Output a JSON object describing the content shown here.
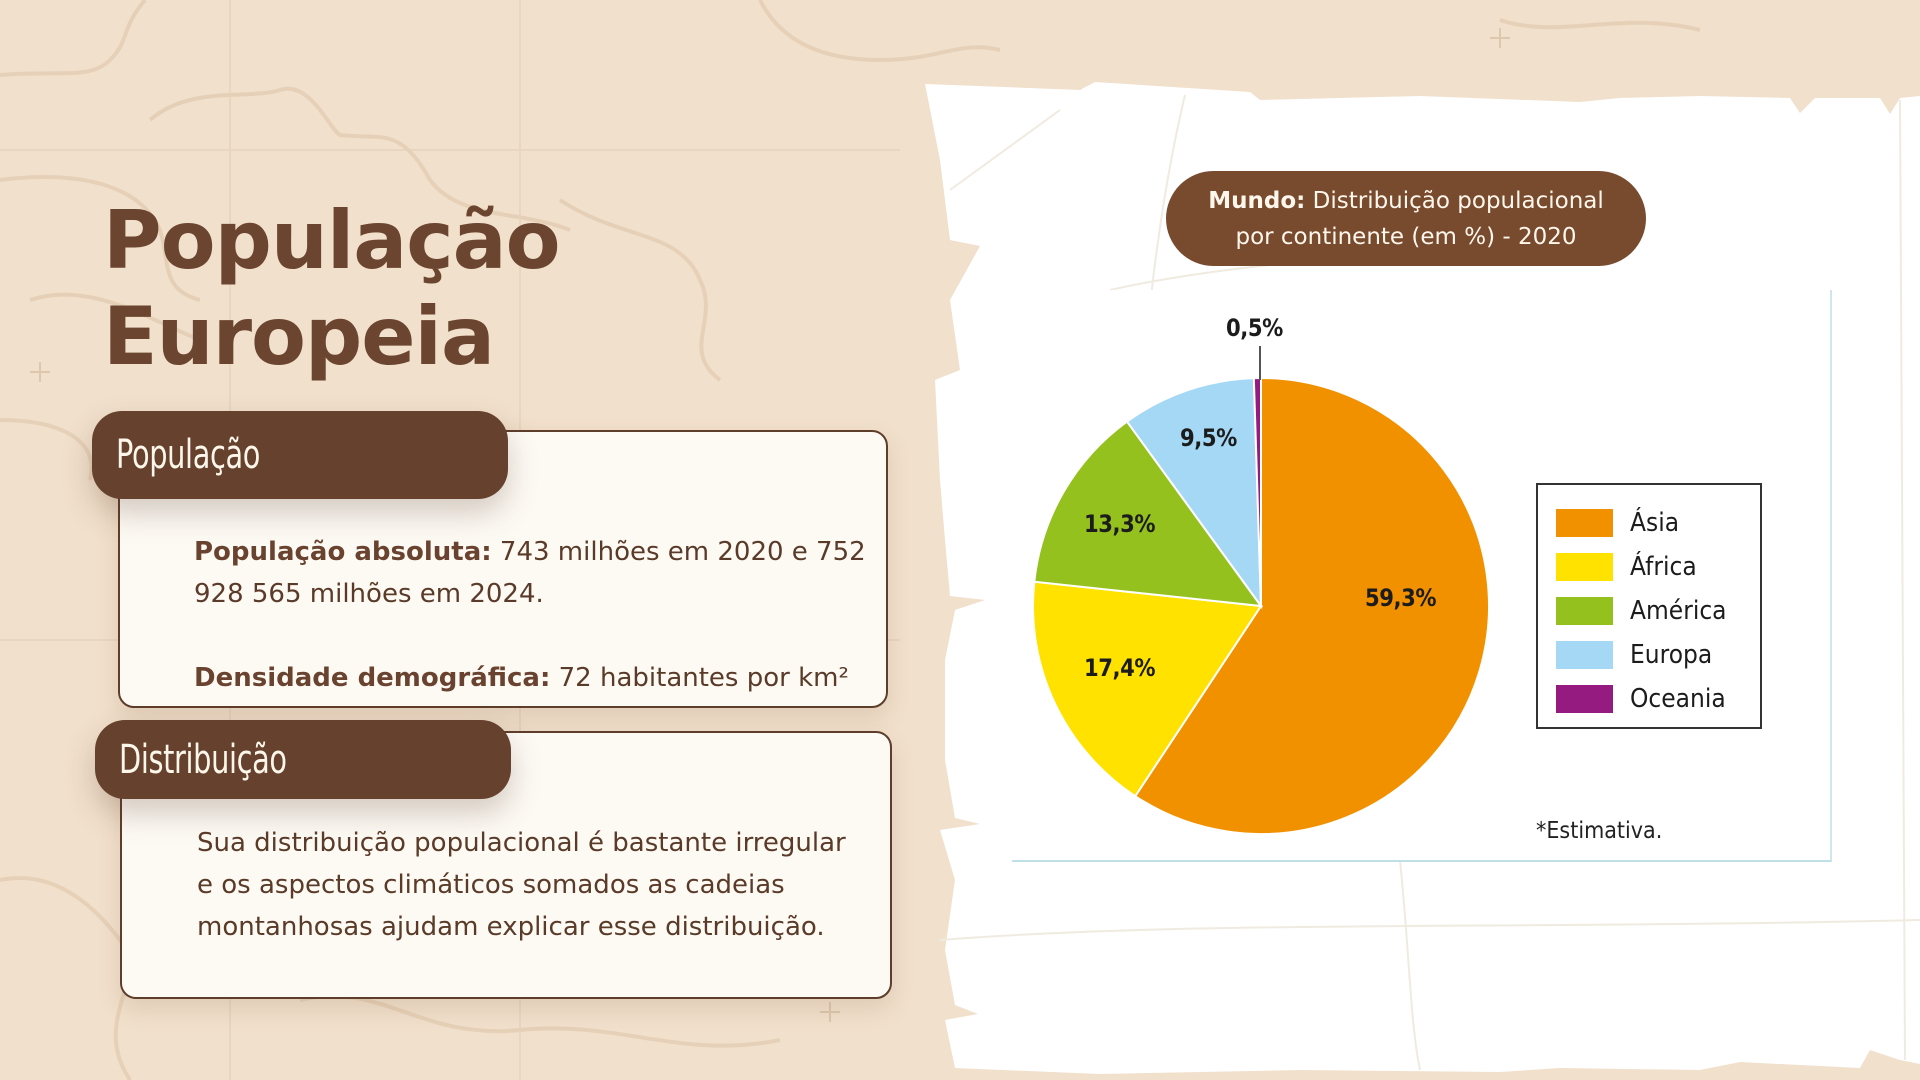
{
  "slide": {
    "title_line1": "População",
    "title_line2": "Europeia"
  },
  "cards": [
    {
      "header": "População",
      "paragraphs": [
        {
          "bold": "População absoluta:",
          "text": " 743 milhões em 2020 e 752 928 565 milhões em 2024."
        },
        {
          "bold": "Densidade demográfica:",
          "text": " 72 habitantes por km²"
        }
      ]
    },
    {
      "header": "Distribuição",
      "paragraphs": [
        {
          "bold": "",
          "text": "Sua distribuição populacional é bastante irregular e os aspectos climáticos somados as cadeias montanhosas ajudam explicar esse distribuição."
        }
      ]
    }
  ],
  "chart_title": {
    "bold": "Mundo:",
    "line1_rest": " Distribuição populacional",
    "line2": "por continente (em %) - 2020"
  },
  "chart_note": "*Estimativa.",
  "colors": {
    "brown_dark": "#66412d",
    "brown_title": "#6b4530",
    "background": "#f1e0cc",
    "card_bg": "#fdfaf4"
  },
  "chart_data": {
    "type": "pie",
    "title": "Mundo: Distribuição populacional por continente (em %) - 2020",
    "categories": [
      "Ásia",
      "África",
      "América",
      "Europa",
      "Oceania"
    ],
    "values": [
      59.3,
      17.4,
      13.3,
      9.5,
      0.5
    ],
    "labels": [
      "59,3%",
      "17,4%",
      "13,3%",
      "9,5%",
      "0,5%"
    ],
    "colors": [
      "#f29100",
      "#ffe200",
      "#95c11f",
      "#a5d8f5",
      "#951b81"
    ],
    "start_angle_deg": 0,
    "direction": "clockwise from 12 o'clock",
    "legend_position": "right",
    "note": "*Estimativa."
  }
}
